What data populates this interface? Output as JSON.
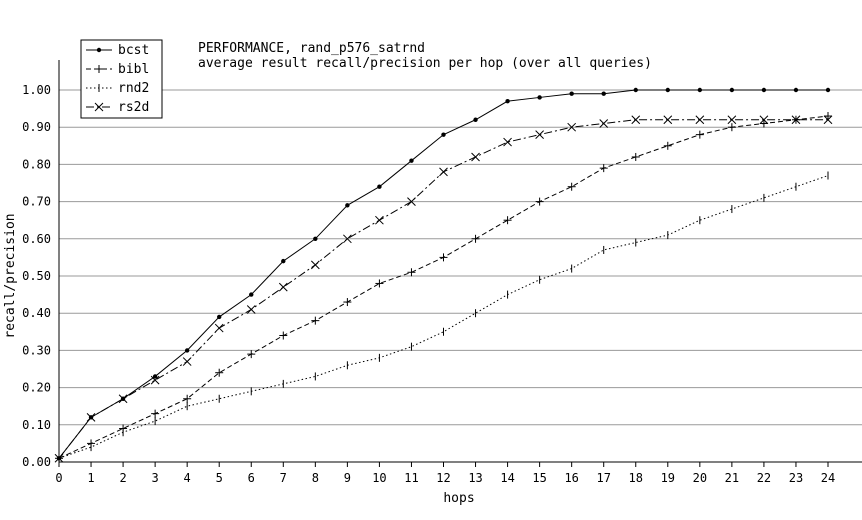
{
  "chart_data": {
    "type": "line",
    "title": "PERFORMANCE, rand_p576_satrnd",
    "subtitle": "average result recall/precision per hop (over all queries)",
    "xlabel": "hops",
    "ylabel": "recall/precision",
    "xlim": [
      0,
      24
    ],
    "ylim": [
      0,
      1.0
    ],
    "x": [
      0,
      1,
      2,
      3,
      4,
      5,
      6,
      7,
      8,
      9,
      10,
      11,
      12,
      13,
      14,
      15,
      16,
      17,
      18,
      19,
      20,
      21,
      22,
      23,
      24
    ],
    "x_ticks": [
      "0",
      "1",
      "2",
      "3",
      "4",
      "5",
      "6",
      "7",
      "8",
      "9",
      "10",
      "11",
      "12",
      "13",
      "14",
      "15",
      "16",
      "17",
      "18",
      "19",
      "20",
      "21",
      "22",
      "23",
      "24"
    ],
    "y_ticks": [
      0.0,
      0.1,
      0.2,
      0.3,
      0.4,
      0.5,
      0.6,
      0.7,
      0.8,
      0.9,
      1.0
    ],
    "y_tick_labels": [
      "0.00",
      "0.10",
      "0.20",
      "0.30",
      "0.40",
      "0.50",
      "0.60",
      "0.70",
      "0.80",
      "0.90",
      "1.00"
    ],
    "grid": "horizontal",
    "legend_position": "top-left",
    "series": [
      {
        "name": "bcst",
        "marker": "dot",
        "dash": "solid",
        "values": [
          0.01,
          0.12,
          0.17,
          0.23,
          0.3,
          0.39,
          0.45,
          0.54,
          0.6,
          0.69,
          0.74,
          0.81,
          0.88,
          0.92,
          0.97,
          0.98,
          0.99,
          0.99,
          1.0,
          1.0,
          1.0,
          1.0,
          1.0,
          1.0,
          1.0
        ]
      },
      {
        "name": "bibl",
        "marker": "plus",
        "dash": "dashed",
        "values": [
          0.01,
          0.05,
          0.09,
          0.13,
          0.17,
          0.24,
          0.29,
          0.34,
          0.38,
          0.43,
          0.48,
          0.51,
          0.55,
          0.6,
          0.65,
          0.7,
          0.74,
          0.79,
          0.82,
          0.85,
          0.88,
          0.9,
          0.91,
          0.92,
          0.93
        ]
      },
      {
        "name": "rnd2",
        "marker": "vbar",
        "dash": "dotted",
        "values": [
          0.01,
          0.04,
          0.08,
          0.11,
          0.15,
          0.17,
          0.19,
          0.21,
          0.23,
          0.26,
          0.28,
          0.31,
          0.35,
          0.4,
          0.45,
          0.49,
          0.52,
          0.57,
          0.59,
          0.61,
          0.65,
          0.68,
          0.71,
          0.74,
          0.77
        ]
      },
      {
        "name": "rs2d",
        "marker": "cross",
        "dash": "dashdot",
        "values": [
          0.01,
          0.12,
          0.17,
          0.22,
          0.27,
          0.36,
          0.41,
          0.47,
          0.53,
          0.6,
          0.65,
          0.7,
          0.78,
          0.82,
          0.86,
          0.88,
          0.9,
          0.91,
          0.92,
          0.92,
          0.92,
          0.92,
          0.92,
          0.92,
          0.92
        ]
      }
    ]
  }
}
